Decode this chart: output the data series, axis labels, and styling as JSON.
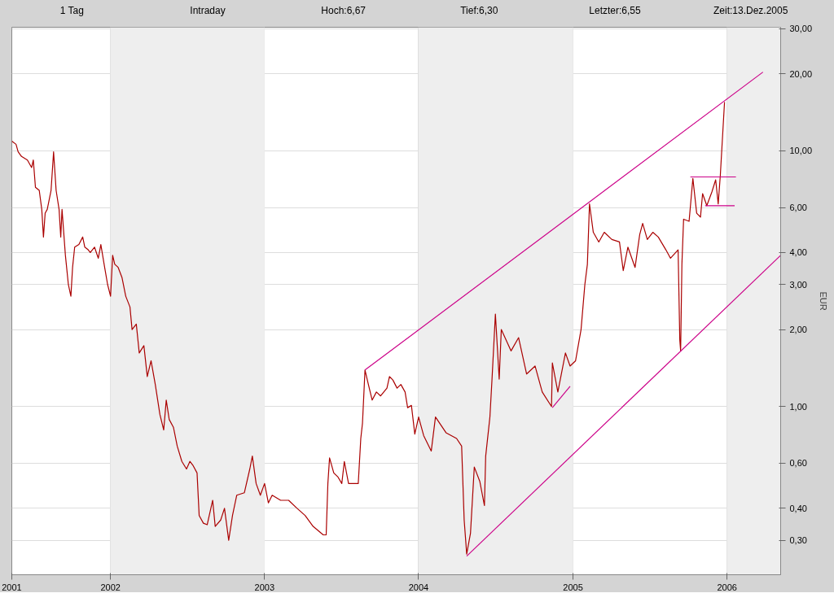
{
  "chart_data": {
    "type": "line",
    "annotations": [
      "1 Tag",
      "Intraday",
      "Hoch:6,67",
      "Tief:6,30",
      "Letzter:6,55",
      "Zeit:13.Dez.2005"
    ],
    "ylabel": "EUR",
    "log": "y",
    "grid": true,
    "xlim": [
      "2001-05-12",
      "2006-05-08"
    ],
    "ylim": [
      0.22,
      30.4
    ],
    "xticks": [
      {
        "value": "2001-05-12",
        "label": "2001"
      },
      {
        "value": "2002-01-01",
        "label": "2002"
      },
      {
        "value": "2003-01-01",
        "label": "2003"
      },
      {
        "value": "2004-01-01",
        "label": "2004"
      },
      {
        "value": "2005-01-01",
        "label": "2005"
      },
      {
        "value": "2006-01-01",
        "label": "2006"
      }
    ],
    "yticks": [
      {
        "value": 0.3,
        "label": "0,30"
      },
      {
        "value": 0.4,
        "label": "0,40"
      },
      {
        "value": 0.6,
        "label": "0,60"
      },
      {
        "value": 1,
        "label": "1,00"
      },
      {
        "value": 2,
        "label": "2,00"
      },
      {
        "value": 3,
        "label": "3,00"
      },
      {
        "value": 4,
        "label": "4,00"
      },
      {
        "value": 6,
        "label": "6,00"
      },
      {
        "value": 10,
        "label": "10,00"
      },
      {
        "value": 20,
        "label": "20,00"
      },
      {
        "value": 30,
        "label": "30,00"
      }
    ],
    "bands": [
      {
        "axis": "x",
        "from": "2002-01-01",
        "to": "2003-01-01",
        "color": "#eeeeee"
      },
      {
        "axis": "x",
        "from": "2004-01-01",
        "to": "2005-01-01",
        "color": "#eeeeee"
      },
      {
        "axis": "x",
        "from": "2006-01-01",
        "to": "2006-05-08",
        "color": "#eeeeee"
      }
    ],
    "series": [
      {
        "color": "#aa0000",
        "x": [
          "2001-05-12",
          "2001-05-22",
          "2001-05-27",
          "2001-06-04",
          "2001-06-18",
          "2001-06-28",
          "2001-07-02",
          "2001-07-07",
          "2001-07-16",
          "2001-07-22",
          "2001-07-26",
          "2001-07-30",
          "2001-08-04",
          "2001-08-13",
          "2001-08-19",
          "2001-08-25",
          "2001-09-01",
          "2001-09-05",
          "2001-09-08",
          "2001-09-16",
          "2001-09-23",
          "2001-09-29",
          "2001-10-03",
          "2001-10-08",
          "2001-10-18",
          "2001-10-27",
          "2001-11-01",
          "2001-11-09",
          "2001-11-14",
          "2001-11-24",
          "2001-12-03",
          "2001-12-09",
          "2001-12-18",
          "2001-12-25",
          "2002-01-01",
          "2002-01-06",
          "2002-01-11",
          "2002-01-19",
          "2002-01-28",
          "2002-02-06",
          "2002-02-16",
          "2002-02-21",
          "2002-03-03",
          "2002-03-10",
          "2002-03-21",
          "2002-03-29",
          "2002-04-07",
          "2002-04-17",
          "2002-04-28",
          "2002-05-07",
          "2002-05-13",
          "2002-05-20",
          "2002-05-30",
          "2002-06-08",
          "2002-06-19",
          "2002-06-30",
          "2002-07-08",
          "2002-07-15",
          "2002-07-25",
          "2002-07-30",
          "2002-08-09",
          "2002-08-18",
          "2002-08-31",
          "2002-09-06",
          "2002-09-19",
          "2002-09-28",
          "2002-10-08",
          "2002-10-17",
          "2002-10-27",
          "2002-11-14",
          "2002-11-27",
          "2002-12-03",
          "2002-12-12",
          "2002-12-22",
          "2003-01-01",
          "2003-01-10",
          "2003-01-19",
          "2003-02-08",
          "2003-02-27",
          "2003-03-19",
          "2003-04-07",
          "2003-04-26",
          "2003-05-20",
          "2003-05-27",
          "2003-05-31",
          "2003-06-04",
          "2003-06-14",
          "2003-06-24",
          "2003-07-03",
          "2003-07-09",
          "2003-07-19",
          "2003-08-01",
          "2003-08-11",
          "2003-08-17",
          "2003-08-21",
          "2003-08-27",
          "2003-09-04",
          "2003-09-13",
          "2003-09-23",
          "2003-10-03",
          "2003-10-18",
          "2003-10-24",
          "2003-11-01",
          "2003-11-11",
          "2003-11-20",
          "2003-11-30",
          "2003-12-06",
          "2003-12-15",
          "2003-12-23",
          "2004-01-01",
          "2004-01-13",
          "2004-01-31",
          "2004-02-10",
          "2004-03-06",
          "2004-03-31",
          "2004-04-12",
          "2004-04-18",
          "2004-04-24",
          "2004-05-03",
          "2004-05-12",
          "2004-05-25",
          "2004-06-05",
          "2004-06-08",
          "2004-06-18",
          "2004-06-23",
          "2004-07-01",
          "2004-07-10",
          "2004-07-15",
          "2004-08-07",
          "2004-08-25",
          "2004-09-13",
          "2004-10-03",
          "2004-10-20",
          "2004-11-11",
          "2004-11-13",
          "2004-11-26",
          "2004-12-14",
          "2004-12-25",
          "2005-01-07",
          "2005-01-20",
          "2005-01-29",
          "2005-02-04",
          "2005-02-09",
          "2005-02-18",
          "2005-03-03",
          "2005-03-16",
          "2005-04-03",
          "2005-04-21",
          "2005-04-30",
          "2005-05-11",
          "2005-05-28",
          "2005-06-08",
          "2005-06-15",
          "2005-06-26",
          "2005-07-09",
          "2005-07-22",
          "2005-08-09",
          "2005-08-20",
          "2005-09-07",
          "2005-09-11",
          "2005-09-13",
          "2005-09-16",
          "2005-09-20",
          "2005-10-03",
          "2005-10-12",
          "2005-10-21",
          "2005-10-30",
          "2005-11-04",
          "2005-11-14",
          "2005-11-26",
          "2005-12-05",
          "2005-12-11",
          "2005-12-16",
          "2005-12-26"
        ],
        "values": [
          10.9,
          10.6,
          9.9,
          9.5,
          9.2,
          8.6,
          9.2,
          7.2,
          7.0,
          5.9,
          4.6,
          5.7,
          5.9,
          7.0,
          9.9,
          7.0,
          5.9,
          4.6,
          5.9,
          3.9,
          3.0,
          2.7,
          3.5,
          4.2,
          4.3,
          4.6,
          4.2,
          4.1,
          4.0,
          4.2,
          3.8,
          4.3,
          3.5,
          3.0,
          2.7,
          3.9,
          3.6,
          3.5,
          3.2,
          2.7,
          2.45,
          2.0,
          2.1,
          1.62,
          1.73,
          1.31,
          1.51,
          1.22,
          0.93,
          0.81,
          1.06,
          0.89,
          0.83,
          0.7,
          0.61,
          0.57,
          0.61,
          0.59,
          0.55,
          0.375,
          0.35,
          0.345,
          0.43,
          0.34,
          0.36,
          0.4,
          0.3,
          0.375,
          0.45,
          0.46,
          0.57,
          0.64,
          0.5,
          0.45,
          0.5,
          0.42,
          0.45,
          0.43,
          0.43,
          0.4,
          0.375,
          0.34,
          0.315,
          0.315,
          0.5,
          0.63,
          0.55,
          0.53,
          0.5,
          0.61,
          0.5,
          0.5,
          0.5,
          0.75,
          0.86,
          1.39,
          1.22,
          1.06,
          1.14,
          1.1,
          1.18,
          1.31,
          1.27,
          1.18,
          1.22,
          1.14,
          0.99,
          1.01,
          0.78,
          0.91,
          0.77,
          0.67,
          0.91,
          0.79,
          0.75,
          0.7,
          0.36,
          0.265,
          0.32,
          0.58,
          0.51,
          0.41,
          0.64,
          0.91,
          1.28,
          2.3,
          1.28,
          2.0,
          1.65,
          1.86,
          1.34,
          1.44,
          1.14,
          1.0,
          1.48,
          1.14,
          1.62,
          1.44,
          1.51,
          2.0,
          3.0,
          3.6,
          6.2,
          4.8,
          4.4,
          4.8,
          4.5,
          4.4,
          3.4,
          4.2,
          3.5,
          4.7,
          5.2,
          4.5,
          4.8,
          4.6,
          4.1,
          3.8,
          4.1,
          1.82,
          1.65,
          3.6,
          5.4,
          5.3,
          7.8,
          5.7,
          5.5,
          6.8,
          6.1,
          6.9,
          7.7,
          6.2,
          8.0,
          15.5
        ]
      },
      {
        "type": "line",
        "color": "#cc0088",
        "x": [
          "2003-08-27",
          "2006-03-27"
        ],
        "values": [
          1.39,
          20.3
        ]
      },
      {
        "type": "line",
        "color": "#cc0088",
        "x": [
          "2004-04-24",
          "2006-05-08"
        ],
        "values": [
          0.26,
          3.9
        ]
      },
      {
        "type": "line",
        "color": "#cc0088",
        "x": [
          "2004-11-13",
          "2004-12-25"
        ],
        "values": [
          0.99,
          1.2
        ]
      },
      {
        "type": "line",
        "color": "#cc0088",
        "x": [
          "2005-10-06",
          "2006-01-22"
        ],
        "values": [
          7.9,
          7.9
        ]
      },
      {
        "type": "line",
        "color": "#cc0088",
        "x": [
          "2005-11-10",
          "2006-01-19"
        ],
        "values": [
          6.1,
          6.1
        ]
      }
    ]
  }
}
